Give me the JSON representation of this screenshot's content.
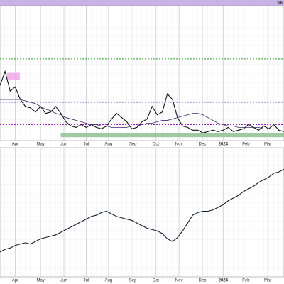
{
  "header_text": "'06",
  "chart_data": [
    {
      "type": "line",
      "x": [
        0,
        1,
        2,
        3,
        4,
        5,
        6,
        7,
        8,
        9,
        10,
        11,
        12,
        13,
        14,
        15,
        16,
        17,
        18,
        19,
        20,
        21,
        22,
        23,
        24,
        25,
        26,
        27,
        28,
        29,
        30,
        31,
        32,
        33,
        34,
        35,
        36,
        37,
        38,
        39,
        40,
        41,
        42,
        43,
        44,
        45,
        46,
        47,
        48,
        49,
        50,
        51,
        52,
        53,
        54,
        55,
        56
      ],
      "xlim": [
        0,
        56
      ],
      "xticks": [
        {
          "value": 3,
          "label": "Apr"
        },
        {
          "value": 8,
          "label": "May"
        },
        {
          "value": 12.6,
          "label": "Jun"
        },
        {
          "value": 17,
          "label": "Jul"
        },
        {
          "value": 21.4,
          "label": "Aug"
        },
        {
          "value": 26.2,
          "label": "Sep"
        },
        {
          "value": 30.7,
          "label": "Oct"
        },
        {
          "value": 35.3,
          "label": "Nov"
        },
        {
          "value": 39.9,
          "label": "Dec"
        },
        {
          "value": 44,
          "label": "2024"
        },
        {
          "value": 48.5,
          "label": "Feb"
        },
        {
          "value": 52.8,
          "label": "Mar"
        }
      ],
      "ylim": [
        0,
        100
      ],
      "series": [
        {
          "color": "#111111",
          "values": [
            43,
            53,
            39,
            42,
            33,
            28,
            27,
            24,
            28,
            23,
            24,
            28,
            23,
            17,
            14,
            13,
            15,
            13,
            15,
            13,
            12,
            14,
            19,
            23,
            20,
            17,
            12,
            13,
            17,
            19,
            28,
            22,
            24,
            37,
            33,
            20,
            14,
            13,
            11,
            11,
            9,
            10,
            11,
            10,
            11,
            13,
            10,
            11,
            12,
            15,
            13,
            11,
            14,
            12,
            15,
            11,
            10
          ]
        },
        {
          "color": "#3a2a6a",
          "values": [
            33,
            33,
            33,
            33,
            33,
            32,
            31,
            30,
            28,
            26,
            25,
            23,
            22,
            20,
            19,
            18,
            17,
            16,
            15,
            15,
            14,
            14,
            13,
            13,
            13,
            13,
            14,
            14,
            15,
            16,
            16,
            17,
            18,
            18,
            19,
            20,
            21,
            22,
            23,
            23,
            22,
            20,
            18,
            16,
            15,
            14,
            14,
            13,
            13,
            13,
            13,
            13,
            12,
            12,
            12,
            12,
            12
          ]
        }
      ],
      "levels": [
        {
          "value": 62,
          "color": "#2e9a2e"
        },
        {
          "value": 31,
          "color": "#3030c0"
        },
        {
          "value": 15,
          "color": "#a020c0"
        }
      ],
      "zones": [
        {
          "x": [
            12,
            56
          ],
          "y": [
            6,
            9
          ],
          "color": "#8fbf8f"
        },
        {
          "x": [
            1.4,
            3.9
          ],
          "y": [
            47,
            52
          ],
          "color": "#f0a8e8"
        }
      ]
    },
    {
      "type": "line",
      "x": [
        0,
        1,
        2,
        3,
        4,
        5,
        6,
        7,
        8,
        9,
        10,
        11,
        12,
        13,
        14,
        15,
        16,
        17,
        18,
        19,
        20,
        21,
        22,
        23,
        24,
        25,
        26,
        27,
        28,
        29,
        30,
        31,
        32,
        33,
        34,
        35,
        36,
        37,
        38,
        39,
        40,
        41,
        42,
        43,
        44,
        45,
        46,
        47,
        48,
        49,
        50,
        51,
        52,
        53,
        54,
        55,
        56
      ],
      "xlim": [
        0,
        56
      ],
      "xticks": [
        {
          "value": 3,
          "label": "Apr"
        },
        {
          "value": 8,
          "label": "May"
        },
        {
          "value": 12.6,
          "label": "Jun"
        },
        {
          "value": 17,
          "label": "Jul"
        },
        {
          "value": 21.4,
          "label": "Aug"
        },
        {
          "value": 26.2,
          "label": "Sep"
        },
        {
          "value": 30.7,
          "label": "Oct"
        },
        {
          "value": 35.3,
          "label": "Nov"
        },
        {
          "value": 39.9,
          "label": "Dec"
        },
        {
          "value": 44,
          "label": "2024"
        },
        {
          "value": 48.5,
          "label": "Feb"
        },
        {
          "value": 52.8,
          "label": "Mar"
        }
      ],
      "ylim": [
        0,
        100
      ],
      "series": [
        {
          "color": "#1a1a2a",
          "values": [
            19,
            21,
            22,
            24,
            25,
            26,
            25,
            27,
            29,
            30,
            31,
            32,
            34,
            36,
            38,
            40,
            42,
            44,
            46,
            47,
            49,
            50,
            48,
            46,
            45,
            44,
            43,
            41,
            39,
            37,
            36,
            35,
            33,
            29,
            27,
            30,
            35,
            41,
            47,
            49,
            50,
            50,
            51,
            53,
            55,
            58,
            60,
            62,
            65,
            67,
            69,
            72,
            74,
            76,
            79,
            80,
            82
          ]
        }
      ]
    }
  ]
}
